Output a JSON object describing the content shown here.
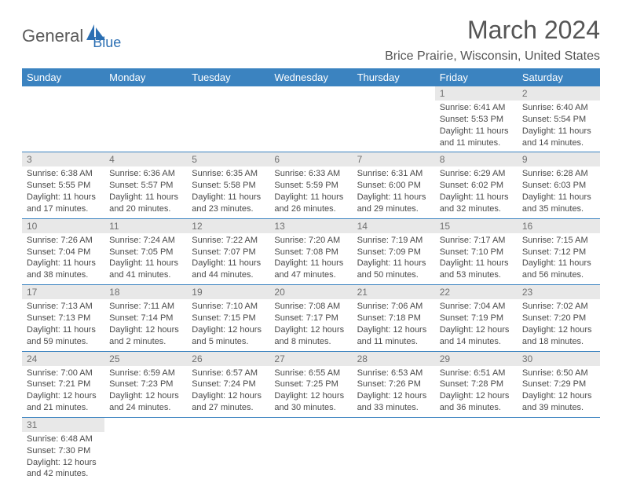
{
  "logo": {
    "text1": "General",
    "text2": "Blue",
    "mark_color": "#2b6fb3",
    "text1_color": "#5a5a5a"
  },
  "title": "March 2024",
  "location": "Brice Prairie, Wisconsin, United States",
  "colors": {
    "header_bg": "#3b83c0",
    "header_text": "#ffffff",
    "daynum_bg": "#e8e8e8",
    "daynum_text": "#707070",
    "body_text": "#4a4a4a",
    "row_border": "#3b83c0"
  },
  "weekdays": [
    "Sunday",
    "Monday",
    "Tuesday",
    "Wednesday",
    "Thursday",
    "Friday",
    "Saturday"
  ],
  "weeks": [
    [
      null,
      null,
      null,
      null,
      null,
      {
        "day": "1",
        "sunrise": "Sunrise: 6:41 AM",
        "sunset": "Sunset: 5:53 PM",
        "daylight": "Daylight: 11 hours and 11 minutes."
      },
      {
        "day": "2",
        "sunrise": "Sunrise: 6:40 AM",
        "sunset": "Sunset: 5:54 PM",
        "daylight": "Daylight: 11 hours and 14 minutes."
      }
    ],
    [
      {
        "day": "3",
        "sunrise": "Sunrise: 6:38 AM",
        "sunset": "Sunset: 5:55 PM",
        "daylight": "Daylight: 11 hours and 17 minutes."
      },
      {
        "day": "4",
        "sunrise": "Sunrise: 6:36 AM",
        "sunset": "Sunset: 5:57 PM",
        "daylight": "Daylight: 11 hours and 20 minutes."
      },
      {
        "day": "5",
        "sunrise": "Sunrise: 6:35 AM",
        "sunset": "Sunset: 5:58 PM",
        "daylight": "Daylight: 11 hours and 23 minutes."
      },
      {
        "day": "6",
        "sunrise": "Sunrise: 6:33 AM",
        "sunset": "Sunset: 5:59 PM",
        "daylight": "Daylight: 11 hours and 26 minutes."
      },
      {
        "day": "7",
        "sunrise": "Sunrise: 6:31 AM",
        "sunset": "Sunset: 6:00 PM",
        "daylight": "Daylight: 11 hours and 29 minutes."
      },
      {
        "day": "8",
        "sunrise": "Sunrise: 6:29 AM",
        "sunset": "Sunset: 6:02 PM",
        "daylight": "Daylight: 11 hours and 32 minutes."
      },
      {
        "day": "9",
        "sunrise": "Sunrise: 6:28 AM",
        "sunset": "Sunset: 6:03 PM",
        "daylight": "Daylight: 11 hours and 35 minutes."
      }
    ],
    [
      {
        "day": "10",
        "sunrise": "Sunrise: 7:26 AM",
        "sunset": "Sunset: 7:04 PM",
        "daylight": "Daylight: 11 hours and 38 minutes."
      },
      {
        "day": "11",
        "sunrise": "Sunrise: 7:24 AM",
        "sunset": "Sunset: 7:05 PM",
        "daylight": "Daylight: 11 hours and 41 minutes."
      },
      {
        "day": "12",
        "sunrise": "Sunrise: 7:22 AM",
        "sunset": "Sunset: 7:07 PM",
        "daylight": "Daylight: 11 hours and 44 minutes."
      },
      {
        "day": "13",
        "sunrise": "Sunrise: 7:20 AM",
        "sunset": "Sunset: 7:08 PM",
        "daylight": "Daylight: 11 hours and 47 minutes."
      },
      {
        "day": "14",
        "sunrise": "Sunrise: 7:19 AM",
        "sunset": "Sunset: 7:09 PM",
        "daylight": "Daylight: 11 hours and 50 minutes."
      },
      {
        "day": "15",
        "sunrise": "Sunrise: 7:17 AM",
        "sunset": "Sunset: 7:10 PM",
        "daylight": "Daylight: 11 hours and 53 minutes."
      },
      {
        "day": "16",
        "sunrise": "Sunrise: 7:15 AM",
        "sunset": "Sunset: 7:12 PM",
        "daylight": "Daylight: 11 hours and 56 minutes."
      }
    ],
    [
      {
        "day": "17",
        "sunrise": "Sunrise: 7:13 AM",
        "sunset": "Sunset: 7:13 PM",
        "daylight": "Daylight: 11 hours and 59 minutes."
      },
      {
        "day": "18",
        "sunrise": "Sunrise: 7:11 AM",
        "sunset": "Sunset: 7:14 PM",
        "daylight": "Daylight: 12 hours and 2 minutes."
      },
      {
        "day": "19",
        "sunrise": "Sunrise: 7:10 AM",
        "sunset": "Sunset: 7:15 PM",
        "daylight": "Daylight: 12 hours and 5 minutes."
      },
      {
        "day": "20",
        "sunrise": "Sunrise: 7:08 AM",
        "sunset": "Sunset: 7:17 PM",
        "daylight": "Daylight: 12 hours and 8 minutes."
      },
      {
        "day": "21",
        "sunrise": "Sunrise: 7:06 AM",
        "sunset": "Sunset: 7:18 PM",
        "daylight": "Daylight: 12 hours and 11 minutes."
      },
      {
        "day": "22",
        "sunrise": "Sunrise: 7:04 AM",
        "sunset": "Sunset: 7:19 PM",
        "daylight": "Daylight: 12 hours and 14 minutes."
      },
      {
        "day": "23",
        "sunrise": "Sunrise: 7:02 AM",
        "sunset": "Sunset: 7:20 PM",
        "daylight": "Daylight: 12 hours and 18 minutes."
      }
    ],
    [
      {
        "day": "24",
        "sunrise": "Sunrise: 7:00 AM",
        "sunset": "Sunset: 7:21 PM",
        "daylight": "Daylight: 12 hours and 21 minutes."
      },
      {
        "day": "25",
        "sunrise": "Sunrise: 6:59 AM",
        "sunset": "Sunset: 7:23 PM",
        "daylight": "Daylight: 12 hours and 24 minutes."
      },
      {
        "day": "26",
        "sunrise": "Sunrise: 6:57 AM",
        "sunset": "Sunset: 7:24 PM",
        "daylight": "Daylight: 12 hours and 27 minutes."
      },
      {
        "day": "27",
        "sunrise": "Sunrise: 6:55 AM",
        "sunset": "Sunset: 7:25 PM",
        "daylight": "Daylight: 12 hours and 30 minutes."
      },
      {
        "day": "28",
        "sunrise": "Sunrise: 6:53 AM",
        "sunset": "Sunset: 7:26 PM",
        "daylight": "Daylight: 12 hours and 33 minutes."
      },
      {
        "day": "29",
        "sunrise": "Sunrise: 6:51 AM",
        "sunset": "Sunset: 7:28 PM",
        "daylight": "Daylight: 12 hours and 36 minutes."
      },
      {
        "day": "30",
        "sunrise": "Sunrise: 6:50 AM",
        "sunset": "Sunset: 7:29 PM",
        "daylight": "Daylight: 12 hours and 39 minutes."
      }
    ],
    [
      {
        "day": "31",
        "sunrise": "Sunrise: 6:48 AM",
        "sunset": "Sunset: 7:30 PM",
        "daylight": "Daylight: 12 hours and 42 minutes."
      },
      null,
      null,
      null,
      null,
      null,
      null
    ]
  ]
}
